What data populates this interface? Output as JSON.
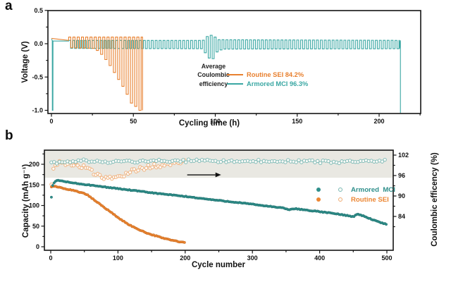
{
  "figure": {
    "panel_a_label": "a",
    "panel_b_label": "b",
    "background": "#ffffff",
    "axis_color": "#141414"
  },
  "colors": {
    "orange": "#E8802F",
    "orange_edge": "#C4661A",
    "orange_open": "#F0AD76",
    "teal": "#3AA7A3",
    "teal_fill": "#2F8F8B",
    "teal_edge": "#1F6E6B",
    "teal_open": "#79B8B4",
    "band_gray": "#E9E8E2",
    "arrow_black": "#111111"
  },
  "chart_data": [
    {
      "id": "a",
      "type": "line",
      "xlabel": "Cycling time (h)",
      "ylabel": "Voltage (V)",
      "xlim": [
        -2.2,
        225.4
      ],
      "ylim": [
        -1.05,
        0.52
      ],
      "xticks": [
        0,
        50,
        100,
        150,
        200
      ],
      "xtick_labels": [
        "0",
        "50",
        "100",
        "150",
        "200"
      ],
      "yticks": [
        0.5,
        0.0,
        -0.5,
        -1.0
      ],
      "ytick_labels": [
        "0.5",
        "0.0",
        "-0.5",
        "-1.0"
      ],
      "grid": false,
      "annotation": [
        "Average",
        "Coulombic",
        "efficiency"
      ],
      "legend_position": "center-right",
      "legend": [
        {
          "label": "Routine SEI 84.2%",
          "color": "#E8802F"
        },
        {
          "label": "Armored MCI 96.3%",
          "color": "#3AA7A3"
        }
      ],
      "series": [
        {
          "name": "Routine SEI",
          "color": "#E8802F",
          "avg_coulombic_efficiency_pct": 84.2,
          "lead_in": [
            [
              0,
              0.08
            ],
            [
              10.5,
              0.05
            ]
          ],
          "pulse": {
            "t_start": 10.5,
            "t_end": 55.6,
            "period": 2.6
          },
          "upper_envelope": [
            [
              10.5,
              0.1
            ],
            [
              55.6,
              0.1
            ]
          ],
          "lower_envelope": [
            [
              10.5,
              -0.06
            ],
            [
              26,
              -0.07
            ],
            [
              30,
              -0.16
            ],
            [
              34,
              -0.28
            ],
            [
              38,
              -0.44
            ],
            [
              42,
              -0.6
            ],
            [
              45,
              -0.72
            ],
            [
              47.5,
              -0.88
            ],
            [
              50,
              -0.92
            ],
            [
              53,
              -1.0
            ],
            [
              55.6,
              -1.0
            ]
          ],
          "tail": []
        },
        {
          "name": "Armored MCI",
          "color": "#3AA7A3",
          "avg_coulombic_efficiency_pct": 96.3,
          "lead_in": [
            [
              0,
              0.07
            ],
            [
              0.5,
              0.05
            ],
            [
              0.55,
              -1.0
            ],
            [
              0.9,
              -1.0
            ],
            [
              0.95,
              0.04
            ],
            [
              10.5,
              0.04
            ]
          ],
          "pulse": {
            "t_start": 10.5,
            "t_end": 212.4,
            "period": 2.4
          },
          "upper_envelope": [
            [
              10.5,
              0.05
            ],
            [
              92,
              0.05
            ],
            [
              95,
              0.12
            ],
            [
              98,
              0.13
            ],
            [
              101,
              0.06
            ],
            [
              212.4,
              0.05
            ]
          ],
          "lower_envelope": [
            [
              10.5,
              -0.07
            ],
            [
              91,
              -0.075
            ],
            [
              95,
              -0.18
            ],
            [
              97,
              -0.28
            ],
            [
              100,
              -0.13
            ],
            [
              104,
              -0.08
            ],
            [
              212.4,
              -0.075
            ]
          ],
          "tail": [
            [
              213,
              0.05
            ],
            [
              213,
              -1.04
            ]
          ]
        }
      ]
    },
    {
      "id": "b",
      "type": "scatter",
      "xlabel": "Cycle number",
      "ylabel": "Capacity (mAh g⁻¹)",
      "y2label": "Coulombic efficency (%)",
      "xlim": [
        -9.5,
        509.5
      ],
      "ylim": [
        -8.5,
        234
      ],
      "y2lim": [
        74,
        103.5
      ],
      "xticks": [
        0,
        100,
        200,
        300,
        400,
        500
      ],
      "xtick_labels": [
        "0",
        "100",
        "200",
        "300",
        "400",
        "500"
      ],
      "yticks": [
        0,
        50,
        100,
        150,
        200
      ],
      "ytick_labels": [
        "0",
        "50",
        "100",
        "150",
        "200"
      ],
      "y2ticks": [
        102,
        96,
        90,
        84
      ],
      "y2tick_labels": [
        "102",
        "96",
        "90",
        "84"
      ],
      "efficiency_band_pct": [
        95.35,
        103.4
      ],
      "band_color": "#E9E8E2",
      "arrow": {
        "points_to": "right-axis",
        "x_cycles": [
          203,
          245
        ],
        "y_ce_pct": 96.2
      },
      "legend": [
        {
          "label": "Armored  MCI",
          "color": "#2F8F8B"
        },
        {
          "label": "Routine SEI",
          "color": "#E8802F"
        }
      ],
      "series": [
        {
          "name": "Routine SEI",
          "cycles": 200,
          "color_fill": "#EC8633",
          "color_edge": "#C4661A",
          "color_open": "#F0AD76",
          "capacity_keypoints": [
            [
              1,
              145
            ],
            [
              5,
              147
            ],
            [
              10,
              145
            ],
            [
              20,
              141
            ],
            [
              30,
              138
            ],
            [
              40,
              134
            ],
            [
              50,
              129
            ],
            [
              55,
              125
            ],
            [
              65,
              113
            ],
            [
              75,
              101
            ],
            [
              85,
              89
            ],
            [
              95,
              77
            ],
            [
              105,
              65
            ],
            [
              115,
              55
            ],
            [
              125,
              46
            ],
            [
              135,
              39
            ],
            [
              145,
              32
            ],
            [
              155,
              27
            ],
            [
              165,
              22
            ],
            [
              175,
              18
            ],
            [
              185,
              14
            ],
            [
              195,
              11
            ],
            [
              200,
              10
            ]
          ],
          "ce_keypoints": [
            [
              1,
              94.0
            ],
            [
              5,
              99.6
            ],
            [
              20,
              99.4
            ],
            [
              40,
              99.0
            ],
            [
              55,
              98.0
            ],
            [
              70,
              96.2
            ],
            [
              85,
              95.2
            ],
            [
              100,
              95.6
            ],
            [
              115,
              96.8
            ],
            [
              130,
              97.8
            ],
            [
              150,
              98.6
            ],
            [
              170,
              99.2
            ],
            [
              185,
              99.6
            ],
            [
              200,
              99.9
            ]
          ],
          "ce_scatter": 0.9,
          "ce_step": 3,
          "cap_step": 2
        },
        {
          "name": "Armored MCI",
          "cycles": 500,
          "color_fill": "#2F8F8B",
          "color_edge": "#1F6E6B",
          "color_open": "#79B8B4",
          "capacity_keypoints": [
            [
              1,
              120
            ],
            [
              3,
              149
            ],
            [
              6,
              157
            ],
            [
              10,
              161
            ],
            [
              15,
              160
            ],
            [
              25,
              157
            ],
            [
              40,
              153
            ],
            [
              60,
              149
            ],
            [
              80,
              145
            ],
            [
              100,
              141
            ],
            [
              130,
              135
            ],
            [
              160,
              129
            ],
            [
              200,
              122
            ],
            [
              240,
              114
            ],
            [
              280,
              107
            ],
            [
              320,
              99
            ],
            [
              345,
              94
            ],
            [
              355,
              90
            ],
            [
              365,
              92
            ],
            [
              385,
              88
            ],
            [
              400,
              85
            ],
            [
              420,
              81
            ],
            [
              440,
              76
            ],
            [
              450,
              73
            ],
            [
              456,
              79
            ],
            [
              465,
              75
            ],
            [
              478,
              66
            ],
            [
              490,
              59
            ],
            [
              500,
              54
            ]
          ],
          "ce_keypoints": [
            [
              1,
              99.8
            ],
            [
              50,
              100.2
            ],
            [
              100,
              100.1
            ],
            [
              200,
              100.3
            ],
            [
              300,
              100.2
            ],
            [
              400,
              100.1
            ],
            [
              500,
              100.2
            ]
          ],
          "ce_scatter": 0.55,
          "ce_step": 4,
          "cap_step": 2
        }
      ]
    }
  ]
}
